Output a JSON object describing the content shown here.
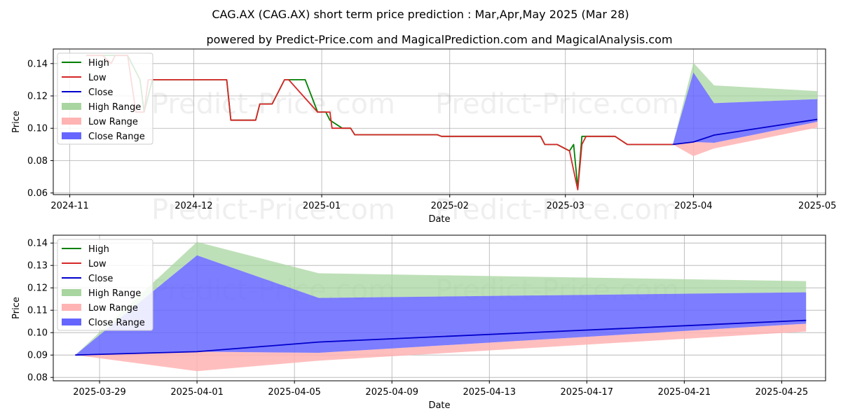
{
  "title_line1": "CAG.AX (CAG.AX) short term price prediction : Mar,Apr,May 2025 (Mar 28)",
  "title_line2": "powered by Predict-Price.com and MagicalPrediction.com and MagicalAnalysis.com",
  "watermark": "Predict-Price.com",
  "colors": {
    "high": "#008000",
    "low": "#d62728",
    "close": "#0000cc",
    "high_range": "#a8d5a0",
    "low_range": "#ffb3b3",
    "close_range": "#6666ff"
  },
  "legend": {
    "high": "High",
    "low": "Low",
    "close": "Close",
    "high_range": "High Range",
    "low_range": "Low Range",
    "close_range": "Close Range"
  },
  "chart_data": [
    {
      "type": "line",
      "xlabel": "Date",
      "ylabel": "Price",
      "xlim": [
        -4,
        183
      ],
      "ylim": [
        0.059,
        0.149
      ],
      "grid": true,
      "legend_position": "top-left",
      "x_ticks": [
        {
          "x": 0,
          "label": "2024-11"
        },
        {
          "x": 30,
          "label": "2024-12"
        },
        {
          "x": 61,
          "label": "2025-01"
        },
        {
          "x": 92,
          "label": "2025-02"
        },
        {
          "x": 120,
          "label": "2025-03"
        },
        {
          "x": 151,
          "label": "2025-04"
        },
        {
          "x": 181,
          "label": "2025-05"
        }
      ],
      "y_ticks": [
        {
          "y": 0.06,
          "label": "0.06"
        },
        {
          "y": 0.08,
          "label": "0.08"
        },
        {
          "y": 0.1,
          "label": "0.10"
        },
        {
          "y": 0.12,
          "label": "0.12"
        },
        {
          "y": 0.14,
          "label": "0.14"
        }
      ],
      "high_series": [
        [
          4,
          0.145
        ],
        [
          10,
          0.145
        ],
        [
          14,
          0.145
        ],
        [
          17,
          0.13
        ],
        [
          18,
          0.11
        ],
        [
          20,
          0.13
        ],
        [
          38,
          0.13
        ],
        [
          39,
          0.105
        ],
        [
          45,
          0.105
        ],
        [
          46,
          0.115
        ],
        [
          49,
          0.115
        ],
        [
          52,
          0.13
        ],
        [
          57,
          0.13
        ],
        [
          60,
          0.11
        ],
        [
          62,
          0.11
        ],
        [
          63,
          0.105
        ],
        [
          66,
          0.1
        ],
        [
          68,
          0.1
        ],
        [
          69,
          0.096
        ],
        [
          89,
          0.096
        ],
        [
          90,
          0.095
        ],
        [
          114,
          0.095
        ],
        [
          115,
          0.09
        ],
        [
          118,
          0.09
        ],
        [
          121,
          0.086
        ],
        [
          122,
          0.09
        ],
        [
          123,
          0.063
        ],
        [
          124,
          0.095
        ],
        [
          132,
          0.095
        ],
        [
          135,
          0.09
        ],
        [
          146,
          0.09
        ]
      ],
      "low_series": [
        [
          4,
          0.145
        ],
        [
          8,
          0.145
        ],
        [
          10,
          0.14
        ],
        [
          11,
          0.145
        ],
        [
          14,
          0.145
        ],
        [
          16,
          0.11
        ],
        [
          18,
          0.11
        ],
        [
          19,
          0.13
        ],
        [
          38,
          0.13
        ],
        [
          39,
          0.105
        ],
        [
          45,
          0.105
        ],
        [
          46,
          0.115
        ],
        [
          49,
          0.115
        ],
        [
          52,
          0.13
        ],
        [
          53,
          0.13
        ],
        [
          60,
          0.11
        ],
        [
          63,
          0.11
        ],
        [
          63.5,
          0.1
        ],
        [
          68,
          0.1
        ],
        [
          69,
          0.096
        ],
        [
          89,
          0.096
        ],
        [
          90,
          0.095
        ],
        [
          114,
          0.095
        ],
        [
          115,
          0.09
        ],
        [
          118,
          0.09
        ],
        [
          121,
          0.086
        ],
        [
          123,
          0.062
        ],
        [
          124,
          0.09
        ],
        [
          125,
          0.095
        ],
        [
          132,
          0.095
        ],
        [
          135,
          0.09
        ],
        [
          146,
          0.09
        ]
      ],
      "close_series": [],
      "pred_x": [
        146,
        151,
        156,
        181
      ],
      "high_range_upper": [
        0.09,
        0.1405,
        0.1265,
        0.123
      ],
      "high_range_lower": [
        0.09,
        0.1345,
        0.1155,
        0.118
      ],
      "close_range_upper": [
        0.09,
        0.1345,
        0.1155,
        0.118
      ],
      "close_range_lower": [
        0.09,
        0.0915,
        0.091,
        0.104
      ],
      "low_range_upper": [
        0.09,
        0.0915,
        0.091,
        0.104
      ],
      "low_range_lower": [
        0.09,
        0.0828,
        0.0875,
        0.1005
      ],
      "close_pred": [
        0.09,
        0.0915,
        0.0958,
        0.1055
      ]
    },
    {
      "type": "line",
      "xlabel": "Date",
      "ylabel": "Price",
      "xlim": [
        -0.9,
        30.8
      ],
      "ylim": [
        0.0785,
        0.1435
      ],
      "grid": true,
      "legend_position": "top-left",
      "x_ticks": [
        {
          "x": 1,
          "label": "2025-03-29"
        },
        {
          "x": 5,
          "label": "2025-04-01"
        },
        {
          "x": 9,
          "label": "2025-04-05"
        },
        {
          "x": 13,
          "label": "2025-04-09"
        },
        {
          "x": 17,
          "label": "2025-04-13"
        },
        {
          "x": 21,
          "label": "2025-04-17"
        },
        {
          "x": 25,
          "label": "2025-04-21"
        },
        {
          "x": 29,
          "label": "2025-04-25"
        }
      ],
      "y_ticks": [
        {
          "y": 0.08,
          "label": "0.08"
        },
        {
          "y": 0.09,
          "label": "0.09"
        },
        {
          "y": 0.1,
          "label": "0.10"
        },
        {
          "y": 0.11,
          "label": "0.11"
        },
        {
          "y": 0.12,
          "label": "0.12"
        },
        {
          "y": 0.13,
          "label": "0.13"
        },
        {
          "y": 0.14,
          "label": "0.14"
        }
      ],
      "high_series": [],
      "low_series": [],
      "close_series": [],
      "pred_x": [
        0,
        5,
        10,
        30
      ],
      "high_range_upper": [
        0.09,
        0.1405,
        0.1265,
        0.123
      ],
      "high_range_lower": [
        0.09,
        0.1345,
        0.1155,
        0.118
      ],
      "close_range_upper": [
        0.09,
        0.1345,
        0.1155,
        0.118
      ],
      "close_range_lower": [
        0.09,
        0.0915,
        0.091,
        0.104
      ],
      "low_range_upper": [
        0.09,
        0.0915,
        0.091,
        0.104
      ],
      "low_range_lower": [
        0.09,
        0.0828,
        0.0875,
        0.1005
      ],
      "close_pred": [
        0.09,
        0.0915,
        0.0958,
        0.1055
      ]
    }
  ]
}
